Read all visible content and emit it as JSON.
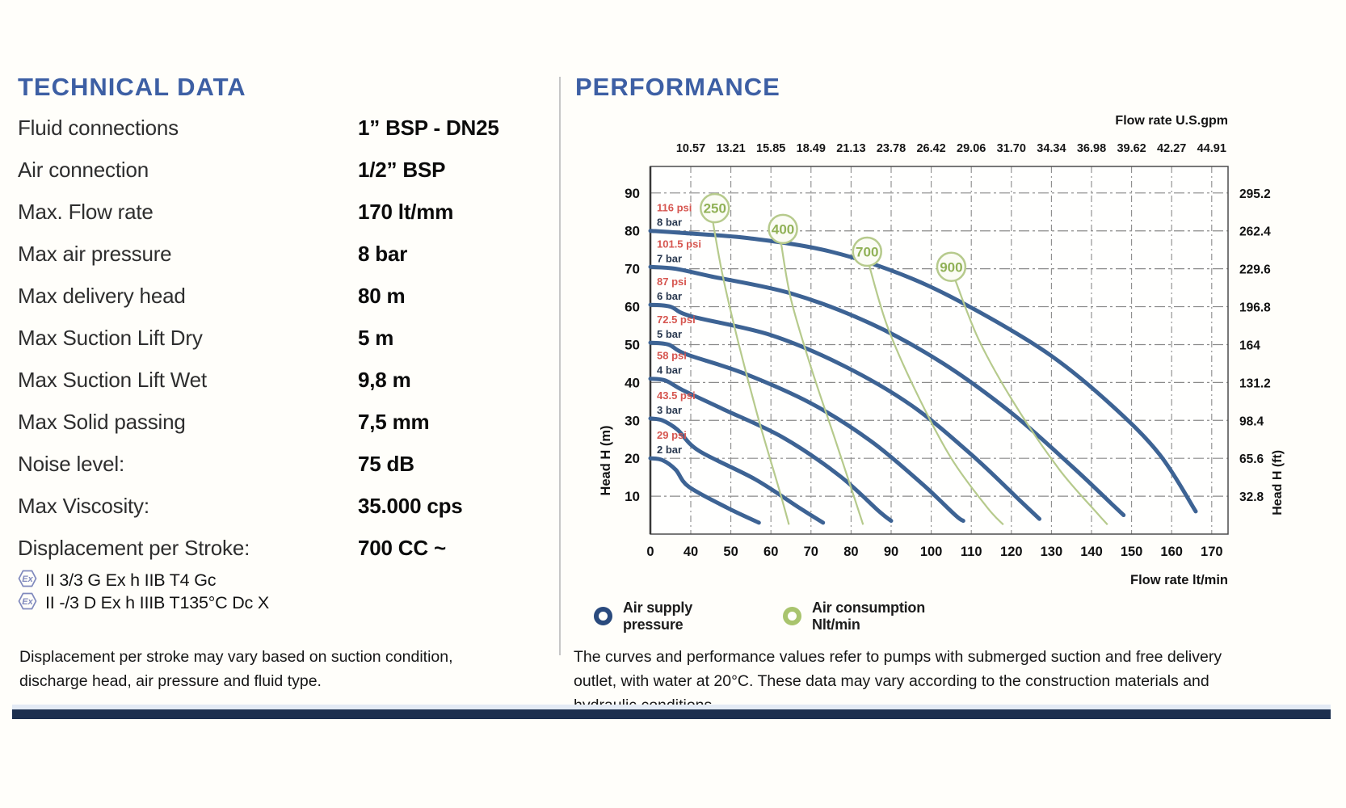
{
  "technical_data": {
    "title": "TECHNICAL DATA",
    "rows": [
      {
        "label": "Fluid connections",
        "value": "1” BSP - DN25"
      },
      {
        "label": "Air connection",
        "value": "1/2” BSP"
      },
      {
        "label": "Max. Flow rate",
        "value": "170 lt/mm"
      },
      {
        "label": "Max air pressure",
        "value": "8 bar"
      },
      {
        "label": "Max delivery head",
        "value": "80 m"
      },
      {
        "label": "Max Suction Lift Dry",
        "value": "5 m"
      },
      {
        "label": "Max Suction Lift Wet",
        "value": "9,8 m"
      },
      {
        "label": "Max Solid passing",
        "value": "7,5 mm"
      },
      {
        "label": "Noise level:",
        "value": "75 dB"
      },
      {
        "label": "Max Viscosity:",
        "value": "35.000 cps"
      },
      {
        "label": "Displacement per Stroke:",
        "value": "700 CC ~"
      }
    ],
    "certifications": [
      {
        "icon": "ex-hexagon-icon",
        "text": "II 3/3 G Ex h IIB T4 Gc"
      },
      {
        "icon": "ex-hexagon-icon",
        "text": "II -/3 D Ex h IIIB T135°C Dc X"
      }
    ],
    "note": "Displacement per stroke may vary based on suction condition, discharge head, air pressure and fluid type."
  },
  "performance": {
    "title": "PERFORMANCE",
    "legend": [
      {
        "line1": "Air supply",
        "line2": "pressure",
        "color": "#2a4a7d"
      },
      {
        "line1": "Air consumption",
        "line2": "Nlt/min",
        "color": "#a9c46d"
      }
    ],
    "note": "The curves and performance values refer to pumps with submerged suction and free delivery outlet, with water at 20°C. These data may vary according to the construction materials and hydraulic conditions."
  },
  "chart_data": {
    "type": "line",
    "x_axis_bottom": {
      "label": "Flow rate  lt/min",
      "ticks": [
        0,
        40,
        50,
        60,
        70,
        80,
        90,
        100,
        110,
        120,
        130,
        140,
        150,
        160,
        170
      ]
    },
    "x_axis_top": {
      "label": "Flow rate U.S.gpm",
      "ticks": [
        "10.57",
        "13.21",
        "15.85",
        "18.49",
        "21.13",
        "23.78",
        "26.42",
        "29.06",
        "31.70",
        "34.34",
        "36.98",
        "39.62",
        "42.27",
        "44.91"
      ]
    },
    "y_axis_left": {
      "label": "Head H (m)",
      "ticks": [
        90,
        80,
        70,
        60,
        50,
        40,
        30,
        20,
        10
      ],
      "range": [
        0,
        97
      ]
    },
    "y_axis_right": {
      "label": "Head H (ft)",
      "ticks": [
        "295.2",
        "262.4",
        "229.6",
        "196.8",
        "164",
        "131.2",
        "98.4",
        "65.6",
        "32.8"
      ]
    },
    "grid": true,
    "colors": {
      "pressure_curve": "#3d6394",
      "air_curve": "#b6ca8c",
      "air_text": "#90b156",
      "psi_label": "#d65650",
      "bar_label": "#2a3950",
      "grid": "#8a8a8a",
      "border": "#4c4c4c"
    },
    "pressure_curves": [
      {
        "name": "8bar",
        "psi": "116 psi",
        "bar": "8 bar",
        "points": [
          [
            0,
            80
          ],
          [
            30,
            79.5
          ],
          [
            55,
            78
          ],
          [
            75,
            74.5
          ],
          [
            95,
            67.5
          ],
          [
            113,
            58
          ],
          [
            130,
            47
          ],
          [
            145,
            34
          ],
          [
            157,
            21
          ],
          [
            166,
            6
          ]
        ]
      },
      {
        "name": "7bar",
        "psi": "101.5 psi",
        "bar": "7 bar",
        "points": [
          [
            0,
            70.5
          ],
          [
            25,
            70
          ],
          [
            45,
            68
          ],
          [
            65,
            63.5
          ],
          [
            85,
            55.5
          ],
          [
            103,
            45
          ],
          [
            120,
            32
          ],
          [
            135,
            18
          ],
          [
            145,
            8
          ],
          [
            148,
            5
          ]
        ]
      },
      {
        "name": "6bar",
        "psi": "87 psi",
        "bar": "6 bar",
        "points": [
          [
            0,
            60.5
          ],
          [
            20,
            60
          ],
          [
            40,
            57.5
          ],
          [
            60,
            52.5
          ],
          [
            78,
            44.5
          ],
          [
            95,
            34
          ],
          [
            110,
            21
          ],
          [
            122,
            9
          ],
          [
            127,
            4
          ]
        ]
      },
      {
        "name": "5bar",
        "psi": "72.5 psi",
        "bar": "5 bar",
        "points": [
          [
            0,
            50.5
          ],
          [
            18,
            50
          ],
          [
            35,
            47.5
          ],
          [
            53,
            42.5
          ],
          [
            70,
            34.5
          ],
          [
            85,
            24.5
          ],
          [
            98,
            13
          ],
          [
            106,
            5
          ],
          [
            108,
            3.5
          ]
        ]
      },
      {
        "name": "4bar",
        "psi": "58 psi",
        "bar": "4 bar",
        "points": [
          [
            0,
            41
          ],
          [
            15,
            40.5
          ],
          [
            32,
            38
          ],
          [
            48,
            33
          ],
          [
            63,
            25.5
          ],
          [
            77,
            15.5
          ],
          [
            87,
            6
          ],
          [
            90,
            3.5
          ]
        ]
      },
      {
        "name": "3bar",
        "psi": "43.5 psi",
        "bar": "3 bar",
        "points": [
          [
            0,
            30.5
          ],
          [
            12,
            30
          ],
          [
            27,
            27.5
          ],
          [
            42,
            22
          ],
          [
            56,
            14.5
          ],
          [
            67,
            7
          ],
          [
            73,
            3
          ]
        ]
      },
      {
        "name": "2bar",
        "psi": "29 psi",
        "bar": "2 bar",
        "points": [
          [
            0,
            20
          ],
          [
            12,
            19.5
          ],
          [
            25,
            17
          ],
          [
            38,
            12.5
          ],
          [
            49,
            7
          ],
          [
            57,
            3
          ]
        ]
      }
    ],
    "air_consumption_curves": [
      {
        "value": "250",
        "circle": [
          46,
          86
        ],
        "points": [
          [
            45.5,
            82.5
          ],
          [
            48,
            68
          ],
          [
            52,
            50
          ],
          [
            57,
            30
          ],
          [
            62,
            12
          ],
          [
            64.5,
            2.5
          ]
        ]
      },
      {
        "value": "400",
        "circle": [
          63,
          80.5
        ],
        "points": [
          [
            62.5,
            77
          ],
          [
            65,
            62
          ],
          [
            70,
            44
          ],
          [
            76,
            25
          ],
          [
            81,
            9
          ],
          [
            83,
            2.5
          ]
        ]
      },
      {
        "value": "700",
        "circle": [
          84,
          74.5
        ],
        "points": [
          [
            84.5,
            71
          ],
          [
            89,
            55
          ],
          [
            96,
            38
          ],
          [
            105,
            20
          ],
          [
            114,
            7
          ],
          [
            118,
            2.5
          ]
        ]
      },
      {
        "value": "900",
        "circle": [
          105,
          70.5
        ],
        "points": [
          [
            106,
            67
          ],
          [
            112,
            51
          ],
          [
            121,
            34
          ],
          [
            132,
            17
          ],
          [
            141,
            6
          ],
          [
            144,
            2.5
          ]
        ]
      }
    ]
  }
}
